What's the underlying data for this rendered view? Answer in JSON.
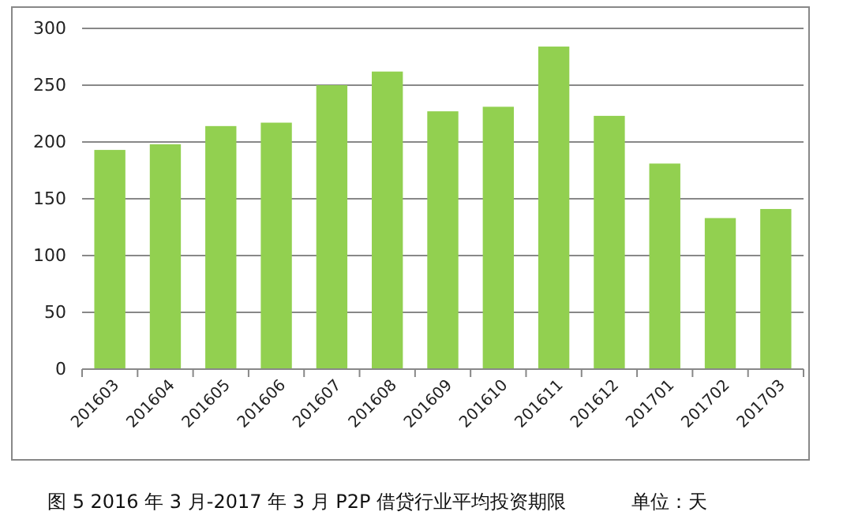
{
  "chart_data": {
    "type": "bar",
    "categories": [
      "201603",
      "201604",
      "201605",
      "201606",
      "201607",
      "201608",
      "201609",
      "201610",
      "201611",
      "201612",
      "201701",
      "201702",
      "201703"
    ],
    "values": [
      193,
      198,
      214,
      217,
      250,
      262,
      227,
      231,
      284,
      223,
      181,
      133,
      141
    ],
    "color": "#92d050",
    "ylim": [
      0,
      300
    ],
    "yticks": [
      0,
      50,
      100,
      150,
      200,
      250,
      300
    ],
    "grid": "y",
    "annotations": [
      "图 5  2016 年 3 月-2017 年 3 月 P2P 借贷行业平均投资期限",
      "单位：天"
    ]
  }
}
